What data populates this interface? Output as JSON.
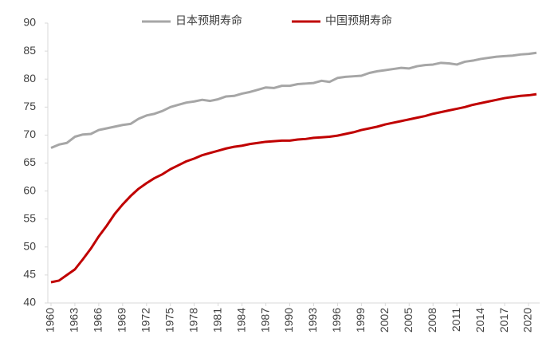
{
  "chart_data": {
    "type": "line",
    "x": [
      1960,
      1961,
      1962,
      1963,
      1964,
      1965,
      1966,
      1967,
      1968,
      1969,
      1970,
      1971,
      1972,
      1973,
      1974,
      1975,
      1976,
      1977,
      1978,
      1979,
      1980,
      1981,
      1982,
      1983,
      1984,
      1985,
      1986,
      1987,
      1988,
      1989,
      1990,
      1991,
      1992,
      1993,
      1994,
      1995,
      1996,
      1997,
      1998,
      1999,
      2000,
      2001,
      2002,
      2003,
      2004,
      2005,
      2006,
      2007,
      2008,
      2009,
      2010,
      2011,
      2012,
      2013,
      2014,
      2015,
      2016,
      2017,
      2018,
      2019,
      2020,
      2021
    ],
    "series": [
      {
        "name": "日本预期寿命",
        "color": "#a6a6a6",
        "values": [
          67.7,
          68.3,
          68.6,
          69.7,
          70.1,
          70.2,
          70.9,
          71.2,
          71.5,
          71.8,
          72.0,
          72.9,
          73.5,
          73.8,
          74.3,
          75.0,
          75.4,
          75.8,
          76.0,
          76.3,
          76.1,
          76.4,
          76.9,
          77.0,
          77.4,
          77.7,
          78.1,
          78.5,
          78.4,
          78.8,
          78.8,
          79.1,
          79.2,
          79.3,
          79.7,
          79.5,
          80.2,
          80.4,
          80.5,
          80.6,
          81.1,
          81.4,
          81.6,
          81.8,
          82.0,
          81.9,
          82.3,
          82.5,
          82.6,
          82.9,
          82.8,
          82.6,
          83.1,
          83.3,
          83.6,
          83.8,
          84.0,
          84.1,
          84.2,
          84.4,
          84.5,
          84.7
        ]
      },
      {
        "name": "中国预期寿命",
        "color": "#c00000",
        "values": [
          43.7,
          44.0,
          45.0,
          46.0,
          47.8,
          49.7,
          51.9,
          53.8,
          55.9,
          57.6,
          59.1,
          60.4,
          61.4,
          62.3,
          63.0,
          63.9,
          64.6,
          65.3,
          65.8,
          66.4,
          66.8,
          67.2,
          67.6,
          67.9,
          68.1,
          68.4,
          68.6,
          68.8,
          68.9,
          69.0,
          69.0,
          69.2,
          69.3,
          69.5,
          69.6,
          69.7,
          69.9,
          70.2,
          70.5,
          70.9,
          71.2,
          71.5,
          71.9,
          72.2,
          72.5,
          72.8,
          73.1,
          73.4,
          73.8,
          74.1,
          74.4,
          74.7,
          75.0,
          75.4,
          75.7,
          76.0,
          76.3,
          76.6,
          76.8,
          77.0,
          77.1,
          77.3
        ]
      }
    ],
    "xlim": [
      1960,
      2021
    ],
    "xticks": [
      1960,
      1963,
      1966,
      1969,
      1972,
      1975,
      1978,
      1981,
      1984,
      1987,
      1990,
      1993,
      1996,
      1999,
      2002,
      2005,
      2008,
      2011,
      2014,
      2017,
      2020
    ],
    "ylim": [
      40,
      90
    ],
    "yticks": [
      40,
      45,
      50,
      55,
      60,
      65,
      70,
      75,
      80,
      85,
      90
    ],
    "grid": false,
    "legend": "top"
  }
}
